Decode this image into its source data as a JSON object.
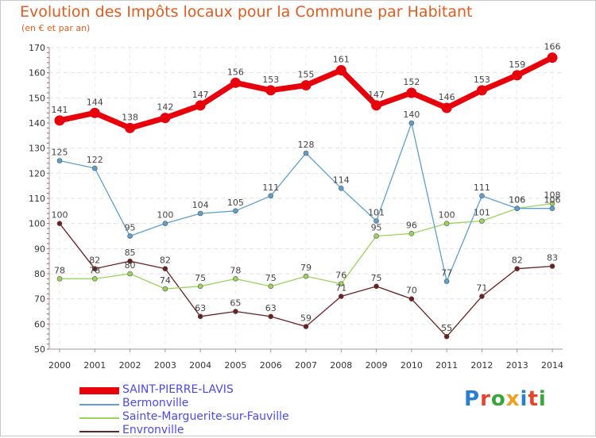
{
  "title": "Evolution des Impôts locaux pour la Commune par Habitant",
  "subtitle": "(en € et par an)",
  "logo": {
    "text": "Proxiti",
    "colors": [
      "#2a7fd4",
      "#e8442a",
      "#3aa63a",
      "#f0a020",
      "#2a7fd4",
      "#e8442a",
      "#3aa63a"
    ]
  },
  "chart_data": {
    "type": "line",
    "title": "Evolution des Impôts locaux pour la Commune par Habitant",
    "ylabel": "(en € et par an)",
    "xlabel": "",
    "x": [
      "2000",
      "2001",
      "2002",
      "2003",
      "2004",
      "2005",
      "2006",
      "2007",
      "2008",
      "2009",
      "2010",
      "2011",
      "2012",
      "2013",
      "2014"
    ],
    "ylim": [
      50,
      170
    ],
    "yticks": [
      50,
      60,
      70,
      80,
      90,
      100,
      110,
      120,
      130,
      140,
      150,
      160,
      170
    ],
    "grid": true,
    "legend_position": "bottom-left",
    "series": [
      {
        "name": "SAINT-PIERRE-LAVIS",
        "color": "#e8000b",
        "values": [
          141,
          144,
          138,
          142,
          147,
          156,
          153,
          155,
          161,
          147,
          152,
          146,
          153,
          159,
          166
        ]
      },
      {
        "name": "Bermonville",
        "color": "#5da0d0",
        "values": [
          125,
          122,
          95,
          100,
          104,
          105,
          111,
          128,
          114,
          101,
          140,
          77,
          111,
          106,
          106
        ]
      },
      {
        "name": "Sainte-Marguerite-sur-Fauville",
        "color": "#9ad35a",
        "values": [
          78,
          78,
          80,
          74,
          75,
          78,
          75,
          79,
          76,
          95,
          96,
          100,
          101,
          106,
          108
        ]
      },
      {
        "name": "Envronville",
        "color": "#6b1f1f",
        "values": [
          100,
          82,
          85,
          82,
          63,
          65,
          63,
          59,
          71,
          75,
          70,
          55,
          71,
          82,
          83
        ]
      }
    ]
  }
}
